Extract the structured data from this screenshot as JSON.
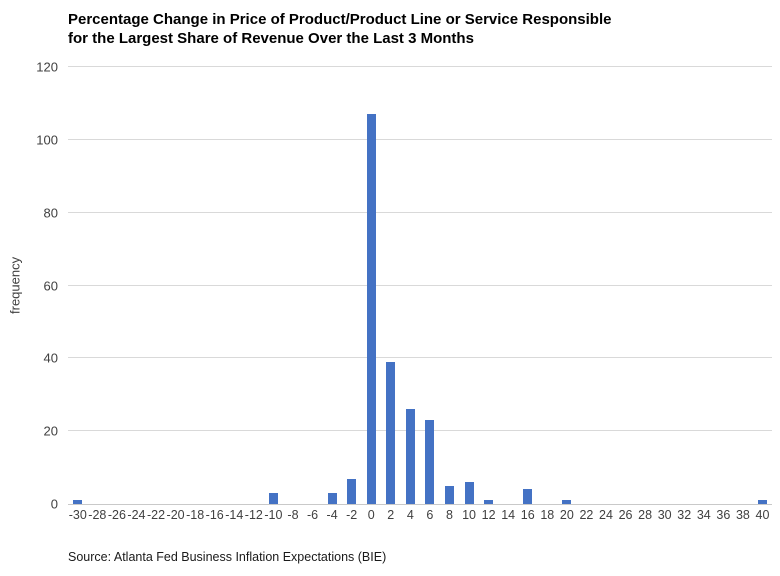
{
  "title_lines": [
    "Percentage Change in Price of Product/Product Line or Service Responsible",
    "for the Largest Share of Revenue Over the Last 3 Months"
  ],
  "source": "Source: Atlanta Fed Business Inflation Expectations (BIE)",
  "chart_data": {
    "type": "bar",
    "title": "Percentage Change in Price of Product/Product Line or Service Responsible for the Largest Share of Revenue Over the Last 3 Months",
    "categories": [
      "-30",
      "-28",
      "-26",
      "-24",
      "-22",
      "-20",
      "-18",
      "-16",
      "-14",
      "-12",
      "-10",
      "-8",
      "-6",
      "-4",
      "-2",
      "0",
      "2",
      "4",
      "6",
      "8",
      "10",
      "12",
      "14",
      "16",
      "18",
      "20",
      "22",
      "24",
      "26",
      "28",
      "30",
      "32",
      "34",
      "36",
      "38",
      "40"
    ],
    "values": [
      1,
      0,
      0,
      0,
      0,
      0,
      0,
      0,
      0,
      0,
      3,
      0,
      0,
      3,
      7,
      107,
      39,
      26,
      23,
      5,
      6,
      1,
      0,
      4,
      0,
      1,
      0,
      0,
      0,
      0,
      0,
      0,
      0,
      0,
      0,
      1
    ],
    "xlabel": "",
    "ylabel": "frequency",
    "ylim": [
      0,
      120
    ],
    "yticks": [
      0,
      20,
      40,
      60,
      80,
      100,
      120
    ],
    "grid": "horizontal",
    "legend": "none",
    "bar_color": "#4472C4",
    "gridline_color": "#d9d9d9",
    "axis_color": "#c9c9c9",
    "tick_text_color": "#404040"
  }
}
